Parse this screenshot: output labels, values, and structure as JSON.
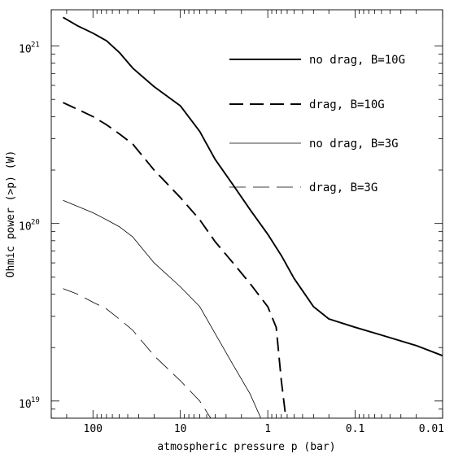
{
  "chart_data": {
    "type": "line",
    "xlabel": "atmospheric pressure p (bar)",
    "ylabel": "Ohmic power (>p) (W)",
    "x_scale": "log",
    "x_reversed": true,
    "xlim": [
      300,
      0.01
    ],
    "y_scale": "log",
    "ylim": [
      8e+18,
      1.6e+21
    ],
    "x_ticks": [
      {
        "value": 100,
        "label": "100"
      },
      {
        "value": 10,
        "label": "10"
      },
      {
        "value": 1,
        "label": "1"
      },
      {
        "value": 0.1,
        "label": "0.1"
      },
      {
        "value": 0.01,
        "label": "0.01"
      }
    ],
    "y_ticks": [
      {
        "value": 1e+19,
        "label": "10",
        "exp": "19"
      },
      {
        "value": 1e+20,
        "label": "10",
        "exp": "20"
      },
      {
        "value": 1e+21,
        "label": "10",
        "exp": "21"
      }
    ],
    "legend_position": "top-right",
    "series": [
      {
        "name": "no drag, B=10G",
        "style": "solid",
        "weight": "thick",
        "x": [
          220,
          150,
          100,
          70,
          50,
          35,
          20,
          10,
          6,
          4,
          2.5,
          1.6,
          1,
          0.7,
          0.5,
          0.3,
          0.2,
          0.1,
          0.05,
          0.02,
          0.01
        ],
        "y": [
          1.45e+21,
          1.3e+21,
          1.18e+21,
          1.07e+21,
          9.2e+20,
          7.5e+20,
          5.9e+20,
          4.6e+20,
          3.3e+20,
          2.3e+20,
          1.65e+20,
          1.2e+20,
          8.7e+19,
          6.6e+19,
          4.9e+19,
          3.4e+19,
          2.9e+19,
          2.6e+19,
          2.35e+19,
          2.05e+19,
          1.8e+19
        ]
      },
      {
        "name": "drag, B=10G",
        "style": "dashed",
        "weight": "thick",
        "x": [
          220,
          150,
          100,
          70,
          50,
          35,
          20,
          10,
          6,
          4,
          2.5,
          1.6,
          1,
          0.8,
          0.7,
          0.62
        ],
        "y": [
          4.8e+20,
          4.4e+20,
          4e+20,
          3.6e+20,
          3.2e+20,
          2.8e+20,
          2e+20,
          1.4e+20,
          1.05e+20,
          7.9e+19,
          6e+19,
          4.6e+19,
          3.4e+19,
          2.6e+19,
          1.3e+19,
          8e+18
        ]
      },
      {
        "name": "no drag, B=3G",
        "style": "solid",
        "weight": "thin",
        "x": [
          220,
          150,
          100,
          70,
          50,
          35,
          20,
          10,
          6,
          4,
          2.5,
          1.6,
          1.2
        ],
        "y": [
          1.35e+20,
          1.25e+20,
          1.15e+20,
          1.05e+20,
          9.6e+19,
          8.4e+19,
          6e+19,
          4.4e+19,
          3.4e+19,
          2.4e+19,
          1.6e+19,
          1.1e+19,
          8e+18
        ]
      },
      {
        "name": "drag, B=3G",
        "style": "dashed",
        "weight": "thin",
        "x": [
          220,
          150,
          100,
          70,
          50,
          35,
          20,
          10,
          6,
          4.5
        ],
        "y": [
          4.3e+19,
          4e+19,
          3.6e+19,
          3.3e+19,
          2.9e+19,
          2.5e+19,
          1.8e+19,
          1.3e+19,
          1e+19,
          8e+18
        ]
      }
    ]
  }
}
